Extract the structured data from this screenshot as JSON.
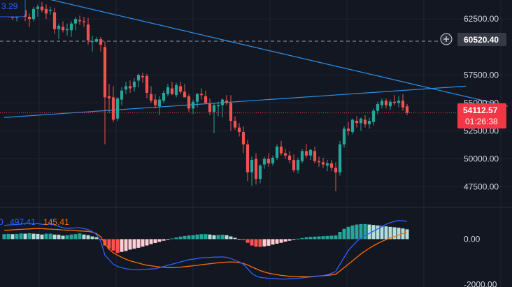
{
  "chart_data": [
    {
      "type": "candlestick",
      "y_axis": {
        "ticks": [
          "62500.00",
          "57500.00",
          "55000.00",
          "52500.00",
          "50000.00",
          "47500.00"
        ],
        "tick_values": [
          62500,
          57500,
          55000,
          52500,
          50000,
          47500
        ],
        "range": [
          46100,
          64200
        ]
      },
      "horizontal_line": {
        "value": 60520.4,
        "label": "60520.40",
        "style": "dashed"
      },
      "current_price": {
        "value": 54112.57,
        "label": "54112.57",
        "countdown": "01:26:38",
        "style": "dotted"
      },
      "trendlines": [
        {
          "from": [
            0,
            65200
          ],
          "to": [
            120,
            54700
          ]
        },
        {
          "from": [
            0,
            53700
          ],
          "to": [
            110,
            56500
          ]
        }
      ],
      "corner_value": "3.29",
      "colors": {
        "up": "#26a69a",
        "down": "#ef5350",
        "background": "#131722",
        "grid": "#1f2433",
        "trendline": "#2962ff",
        "tag": "#f23645"
      },
      "ohlc": [
        [
          63900,
          64100,
          63000,
          63700
        ],
        [
          63800,
          64300,
          62600,
          62800
        ],
        [
          63000,
          63500,
          62400,
          62600
        ],
        [
          62600,
          63400,
          62300,
          63200
        ],
        [
          63100,
          63500,
          62700,
          63300
        ],
        [
          63300,
          63700,
          62300,
          62700
        ],
        [
          62700,
          63000,
          61800,
          62500
        ],
        [
          62500,
          63600,
          62300,
          63400
        ],
        [
          63400,
          63800,
          62700,
          63600
        ],
        [
          63600,
          64000,
          63100,
          63300
        ],
        [
          63400,
          63800,
          62500,
          63000
        ],
        [
          63200,
          63600,
          62900,
          63300
        ],
        [
          63100,
          63500,
          61200,
          61600
        ],
        [
          61600,
          62100,
          60700,
          61900
        ],
        [
          61800,
          62300,
          61300,
          61500
        ],
        [
          61500,
          62100,
          61000,
          61600
        ],
        [
          61500,
          62300,
          60900,
          62100
        ],
        [
          62100,
          62700,
          61500,
          62500
        ],
        [
          62400,
          62800,
          62000,
          62300
        ],
        [
          62300,
          62700,
          61800,
          62200
        ],
        [
          62000,
          62600,
          60200,
          60600
        ],
        [
          60500,
          61000,
          59600,
          60500
        ],
        [
          60500,
          60900,
          60400,
          60700
        ],
        [
          60700,
          60900,
          59600,
          60200
        ],
        [
          60000,
          60500,
          51300,
          55500
        ],
        [
          55600,
          56700,
          54100,
          55400
        ],
        [
          55500,
          56500,
          53300,
          53500
        ],
        [
          53600,
          55500,
          53400,
          55400
        ],
        [
          55300,
          56400,
          54800,
          56100
        ],
        [
          56200,
          56900,
          55800,
          56500
        ],
        [
          56500,
          57000,
          55900,
          56300
        ],
        [
          56400,
          57200,
          56000,
          56900
        ],
        [
          57000,
          57600,
          56400,
          57500
        ],
        [
          57400,
          57700,
          56800,
          57300
        ],
        [
          57400,
          57600,
          55400,
          55900
        ],
        [
          55800,
          56500,
          55000,
          55200
        ],
        [
          55300,
          55800,
          54500,
          54800
        ],
        [
          54700,
          55600,
          53900,
          55300
        ],
        [
          55200,
          56100,
          55000,
          55900
        ],
        [
          55800,
          56700,
          55600,
          56400
        ],
        [
          56300,
          56900,
          55700,
          55800
        ],
        [
          55700,
          56800,
          55500,
          56600
        ],
        [
          56500,
          56900,
          55800,
          56000
        ],
        [
          56000,
          56700,
          55500,
          55500
        ],
        [
          55600,
          55800,
          54200,
          54500
        ],
        [
          54500,
          55300,
          54000,
          55100
        ],
        [
          55100,
          55900,
          54600,
          55800
        ],
        [
          55800,
          56300,
          55300,
          55700
        ],
        [
          55600,
          56100,
          54900,
          55000
        ],
        [
          54900,
          55400,
          53900,
          54200
        ],
        [
          54200,
          55000,
          52300,
          54800
        ],
        [
          54700,
          55100,
          53800,
          54800
        ],
        [
          54800,
          55400,
          53700,
          55300
        ],
        [
          55200,
          55700,
          54800,
          55000
        ],
        [
          55000,
          55700,
          52500,
          53400
        ],
        [
          53400,
          53800,
          52600,
          52800
        ],
        [
          52800,
          53200,
          52000,
          52400
        ],
        [
          52400,
          52900,
          50500,
          51300
        ],
        [
          51300,
          51700,
          48000,
          48800
        ],
        [
          48800,
          50200,
          47600,
          49900
        ],
        [
          50000,
          50500,
          47700,
          48200
        ],
        [
          48200,
          49500,
          47800,
          49400
        ],
        [
          49500,
          50200,
          49100,
          50000
        ],
        [
          50000,
          50500,
          49300,
          49600
        ],
        [
          49600,
          50300,
          49400,
          50100
        ],
        [
          50100,
          51300,
          49900,
          51100
        ],
        [
          51100,
          51600,
          50300,
          50500
        ],
        [
          50500,
          50900,
          50000,
          50300
        ],
        [
          50300,
          50700,
          49600,
          49900
        ],
        [
          49900,
          50400,
          48800,
          49000
        ],
        [
          49000,
          50100,
          48700,
          49900
        ],
        [
          49800,
          50900,
          49600,
          50700
        ],
        [
          50700,
          51300,
          50100,
          50300
        ],
        [
          50300,
          50900,
          49900,
          50800
        ],
        [
          50700,
          51100,
          49600,
          49800
        ],
        [
          49800,
          50200,
          49300,
          49700
        ],
        [
          49700,
          50100,
          49200,
          49500
        ],
        [
          49400,
          49900,
          48900,
          49600
        ],
        [
          49600,
          49900,
          48900,
          49200
        ],
        [
          49200,
          49700,
          47100,
          48800
        ],
        [
          48800,
          51600,
          48500,
          51300
        ],
        [
          51300,
          52900,
          51000,
          52700
        ],
        [
          52700,
          53300,
          52100,
          52500
        ],
        [
          52400,
          53600,
          52200,
          53500
        ],
        [
          53400,
          53800,
          52800,
          53200
        ],
        [
          53200,
          53700,
          52500,
          53600
        ],
        [
          53500,
          53900,
          52800,
          53100
        ],
        [
          53100,
          53700,
          52700,
          53400
        ],
        [
          53300,
          54500,
          53000,
          54300
        ],
        [
          54300,
          55100,
          54000,
          54900
        ],
        [
          54800,
          55400,
          54500,
          55200
        ],
        [
          55200,
          55400,
          54500,
          54800
        ],
        [
          54700,
          55300,
          54400,
          55100
        ],
        [
          55100,
          55700,
          54800,
          55000
        ],
        [
          55000,
          55600,
          54600,
          55200
        ],
        [
          55200,
          55800,
          54300,
          54600
        ],
        [
          54700,
          54900,
          53900,
          54100
        ]
      ]
    },
    {
      "type": "macd",
      "legend": {
        "prefix": "0",
        "macd_value": "497.41",
        "signal_value": "145.41"
      },
      "y_axis": {
        "ticks": [
          "0.00",
          "-2000.00"
        ],
        "tick_values": [
          0,
          -2000
        ],
        "range": [
          -2100,
          1300
        ]
      },
      "colors": {
        "macd": "#2962ff",
        "signal": "#ff6d00",
        "hist_up_strong": "#26a69a",
        "hist_up_weak": "#b2dfdb",
        "hist_down_strong": "#ff5252",
        "hist_down_weak": "#ffcdd2"
      },
      "histogram": [
        220,
        230,
        220,
        230,
        250,
        240,
        260,
        240,
        230,
        200,
        240,
        240,
        200,
        190,
        150,
        170,
        200,
        220,
        250,
        200,
        170,
        120,
        80,
        -10,
        -280,
        -420,
        -500,
        -600,
        -560,
        -520,
        -460,
        -420,
        -380,
        -330,
        -280,
        -220,
        -170,
        -120,
        -70,
        -20,
        30,
        70,
        110,
        140,
        160,
        170,
        200,
        220,
        220,
        200,
        170,
        180,
        190,
        170,
        120,
        60,
        10,
        -40,
        -160,
        -280,
        -330,
        -340,
        -320,
        -290,
        -240,
        -200,
        -160,
        -110,
        -70,
        -30,
        20,
        50,
        80,
        100,
        110,
        120,
        130,
        140,
        150,
        160,
        320,
        450,
        540,
        600,
        640,
        660,
        660,
        640,
        620,
        600,
        580,
        560,
        540,
        520,
        500,
        470,
        430
      ],
      "macd_line": [
        600,
        620,
        630,
        640,
        660,
        680,
        700,
        690,
        680,
        650,
        640,
        660,
        620,
        560,
        500,
        470,
        480,
        490,
        500,
        460,
        420,
        330,
        200,
        -100,
        -700,
        -900,
        -1100,
        -1200,
        -1250,
        -1300,
        -1320,
        -1330,
        -1340,
        -1330,
        -1320,
        -1310,
        -1300,
        -1250,
        -1200,
        -1150,
        -1100,
        -1050,
        -1000,
        -950,
        -900,
        -880,
        -850,
        -820,
        -810,
        -800,
        -790,
        -790,
        -780,
        -800,
        -850,
        -930,
        -1000,
        -1100,
        -1300,
        -1500,
        -1620,
        -1680,
        -1700,
        -1720,
        -1730,
        -1740,
        -1750,
        -1750,
        -1740,
        -1730,
        -1720,
        -1700,
        -1680,
        -1660,
        -1640,
        -1620,
        -1600,
        -1560,
        -1500,
        -1420,
        -1100,
        -800,
        -500,
        -300,
        -100,
        50,
        150,
        250,
        350,
        450,
        550,
        650,
        720,
        780,
        820,
        800,
        780
      ],
      "signal_line": [
        380,
        390,
        410,
        420,
        430,
        440,
        450,
        460,
        460,
        460,
        450,
        440,
        430,
        420,
        400,
        390,
        380,
        370,
        360,
        350,
        340,
        300,
        240,
        100,
        -200,
        -450,
        -600,
        -700,
        -800,
        -880,
        -950,
        -1000,
        -1050,
        -1100,
        -1140,
        -1170,
        -1200,
        -1220,
        -1240,
        -1250,
        -1250,
        -1240,
        -1230,
        -1210,
        -1190,
        -1170,
        -1150,
        -1120,
        -1100,
        -1080,
        -1060,
        -1040,
        -1020,
        -1010,
        -1000,
        -1010,
        -1030,
        -1070,
        -1130,
        -1220,
        -1300,
        -1380,
        -1440,
        -1490,
        -1530,
        -1560,
        -1590,
        -1610,
        -1630,
        -1640,
        -1650,
        -1650,
        -1650,
        -1640,
        -1630,
        -1620,
        -1610,
        -1590,
        -1570,
        -1540,
        -1400,
        -1250,
        -1100,
        -950,
        -800,
        -650,
        -520,
        -400,
        -290,
        -190,
        -100,
        -20,
        50,
        110,
        180,
        250,
        310
      ]
    }
  ]
}
